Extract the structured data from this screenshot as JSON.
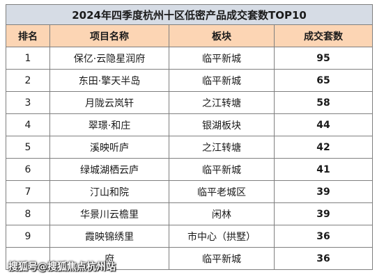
{
  "title": "2024年四季度杭州十区低密产品成交套数TOP10",
  "columns": [
    "排名",
    "项目名称",
    "板块",
    "成交套数"
  ],
  "rows": [
    {
      "rank": "1",
      "name": "保亿·云隐星润府",
      "area": "临平新城",
      "count": "95"
    },
    {
      "rank": "2",
      "name": "东田·擎天半岛",
      "area": "临平新城",
      "count": "65"
    },
    {
      "rank": "3",
      "name": "月陇云岚轩",
      "area": "之江转塘",
      "count": "58"
    },
    {
      "rank": "4",
      "name": "翠璟·和庄",
      "area": "银湖板块",
      "count": "44"
    },
    {
      "rank": "5",
      "name": "溪映听庐",
      "area": "之江转塘",
      "count": "42"
    },
    {
      "rank": "6",
      "name": "绿城湖栖云庐",
      "area": "临平新城",
      "count": "41"
    },
    {
      "rank": "7",
      "name": "汀山和院",
      "area": "临平老城区",
      "count": "39"
    },
    {
      "rank": "8",
      "name": "华景川云檐里",
      "area": "闲林",
      "count": "39"
    },
    {
      "rank": "9",
      "name": "霞映锦绣里",
      "area": "市中心（拱墅）",
      "count": "36"
    },
    {
      "rank": "",
      "name": "府",
      "area": "临平新城",
      "count": "36"
    }
  ],
  "watermark": "搜狐号@搜狐焦点杭州站",
  "colors": {
    "title_bg": "#d6dce5",
    "header_bg": "#fcd5b4",
    "count_color": "#c00000"
  }
}
